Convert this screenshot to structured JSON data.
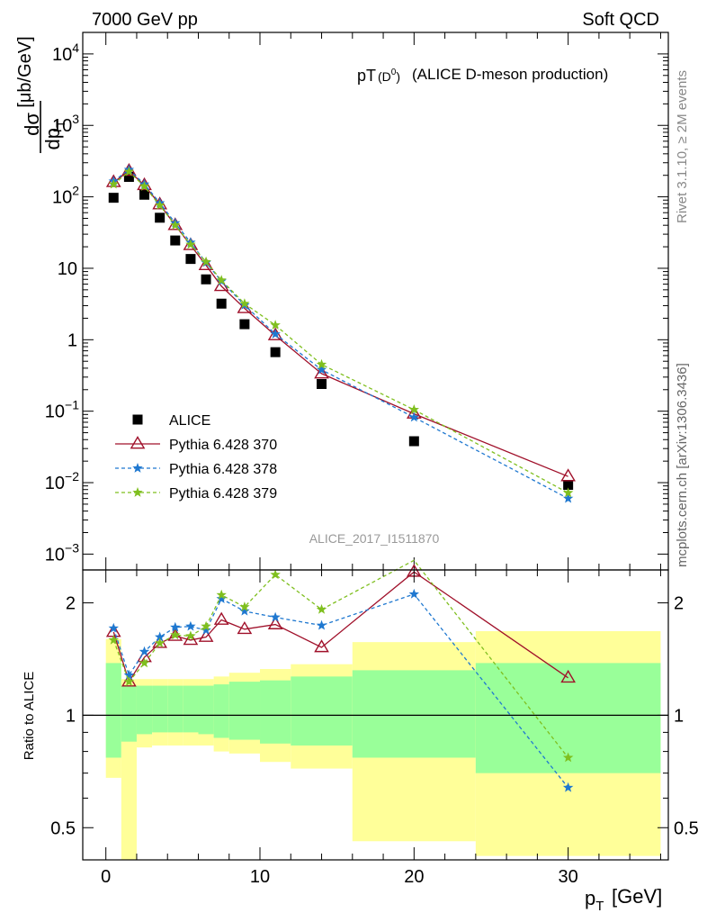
{
  "header": {
    "left": "7000 GeV pp",
    "right": "Soft QCD"
  },
  "side_labels": {
    "rivet": "Rivet 3.1.10, ≥ 2M events",
    "mcplots": "mcplots.cern.ch [arXiv:1306.3436]"
  },
  "colors": {
    "alice": "#000000",
    "p370": "#a0102a",
    "p378": "#1f78d0",
    "p379": "#7fbf1f",
    "band_yellow": "#ffff99",
    "band_green": "#99ff99"
  },
  "chart_data": [
    {
      "type": "scatter",
      "title_main": "pT",
      "title_sub": "(D",
      "title_sup": "0",
      "title_close": ")",
      "title_rest": "(ALICE D-meson production)",
      "ylabel_num": "dσ",
      "ylabel_den": "dp",
      "ylabel_den_sub": "T",
      "ylabel_unit": "[μb/GeV]",
      "yscale": "log",
      "ylim": [
        0.0006,
        20000
      ],
      "xlim": [
        -1.5,
        36.5
      ],
      "analysis_label": "ALICE_2017_I1511870",
      "ytick_labels": [
        {
          "value": 0.001,
          "base": "10",
          "exp": "−3"
        },
        {
          "value": 0.01,
          "base": "10",
          "exp": "−2"
        },
        {
          "value": 0.1,
          "base": "10",
          "exp": "−1"
        },
        {
          "value": 1,
          "base": "1",
          "exp": ""
        },
        {
          "value": 10,
          "base": "10",
          "exp": ""
        },
        {
          "value": 100,
          "base": "10",
          "exp": "2"
        },
        {
          "value": 1000,
          "base": "10",
          "exp": "3"
        },
        {
          "value": 10000,
          "base": "10",
          "exp": "4"
        }
      ],
      "x": [
        0.5,
        1.5,
        2.5,
        3.5,
        4.5,
        5.5,
        6.5,
        7.5,
        9,
        11,
        14,
        20,
        30
      ],
      "series": [
        {
          "name": "ALICE",
          "marker": "square",
          "values": [
            97,
            190,
            107,
            51,
            24.5,
            13.5,
            7.0,
            3.2,
            1.65,
            0.67,
            0.24,
            0.038,
            0.0093
          ]
        },
        {
          "name": "Pythia 6.428 370",
          "marker": "triangle",
          "values": [
            160,
            230,
            145,
            78,
            40,
            21,
            11,
            5.6,
            2.75,
            1.15,
            0.335,
            0.092,
            0.0122
          ]
        },
        {
          "name": "Pythia 6.428 378",
          "marker": "star",
          "values": [
            165,
            240,
            150,
            82,
            43,
            23,
            12,
            6.6,
            3.05,
            1.2,
            0.38,
            0.082,
            0.006
          ]
        },
        {
          "name": "Pythia 6.428 379",
          "marker": "star",
          "values": [
            150,
            225,
            140,
            76,
            40,
            21.5,
            12.3,
            6.8,
            3.2,
            1.6,
            0.45,
            0.105,
            0.0072
          ]
        }
      ],
      "legend_position": "bottom-left"
    },
    {
      "type": "scatter",
      "ylabel": "Ratio to ALICE",
      "xlabel_main": "p",
      "xlabel_sub": "T",
      "xlabel_unit": "[GeV]",
      "yscale": "log",
      "ylim": [
        0.41,
        2.45
      ],
      "xlim": [
        -1.5,
        36.5
      ],
      "xticks": [
        0,
        10,
        20,
        30
      ],
      "xtick_labels": [
        "0",
        "10",
        "20",
        "30"
      ],
      "yticks": [
        0.5,
        1,
        2
      ],
      "ytick_labels": [
        "0.5",
        "1",
        "2"
      ],
      "x": [
        0.5,
        1.5,
        2.5,
        3.5,
        4.5,
        5.5,
        6.5,
        7.5,
        9,
        11,
        14,
        20,
        30
      ],
      "series": [
        {
          "name": "Pythia 6.428 370",
          "values": [
            1.67,
            1.23,
            1.43,
            1.56,
            1.63,
            1.59,
            1.62,
            1.8,
            1.7,
            1.75,
            1.52,
            2.42,
            1.26
          ]
        },
        {
          "name": "Pythia 6.428 378",
          "values": [
            1.71,
            1.28,
            1.48,
            1.62,
            1.72,
            1.73,
            1.69,
            2.05,
            1.9,
            1.83,
            1.74,
            2.11,
            0.64
          ]
        },
        {
          "name": "Pythia 6.428 379",
          "values": [
            1.59,
            1.23,
            1.38,
            1.56,
            1.64,
            1.63,
            1.73,
            2.1,
            1.95,
            2.38,
            1.92,
            2.6,
            0.77
          ]
        }
      ],
      "bands": {
        "edges": [
          0,
          1,
          2,
          3,
          4,
          5,
          6,
          7,
          8,
          10,
          12,
          16,
          24,
          36
        ],
        "yellow_hi": [
          1.6,
          1.25,
          1.25,
          1.25,
          1.25,
          1.25,
          1.25,
          1.27,
          1.3,
          1.33,
          1.37,
          1.57,
          1.68
        ],
        "yellow_lo": [
          0.68,
          0.38,
          0.82,
          0.83,
          0.83,
          0.83,
          0.83,
          0.8,
          0.79,
          0.75,
          0.72,
          0.46,
          0.42
        ],
        "green_hi": [
          1.38,
          1.2,
          1.2,
          1.2,
          1.2,
          1.2,
          1.2,
          1.21,
          1.23,
          1.24,
          1.27,
          1.32,
          1.38
        ],
        "green_lo": [
          0.77,
          0.85,
          0.89,
          0.9,
          0.9,
          0.9,
          0.89,
          0.87,
          0.86,
          0.84,
          0.83,
          0.77,
          0.7
        ]
      }
    }
  ]
}
